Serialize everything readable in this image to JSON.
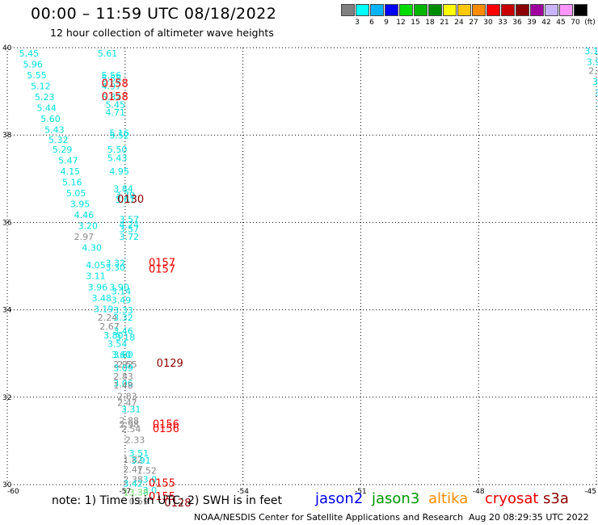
{
  "header": {
    "title": "00:00 – 11:59 UTC 08/18/2022",
    "subtitle": "12 hour collection of altimeter wave heights"
  },
  "colorbar": {
    "colors": [
      "#808080",
      "#00ffff",
      "#00b4ff",
      "#0000ff",
      "#00dc00",
      "#00b400",
      "#008c00",
      "#ffff00",
      "#ffc800",
      "#ff8c00",
      "#ff0000",
      "#c80000",
      "#8c0000",
      "#a000a0",
      "#c8b4ff",
      "#ff96ff",
      "#000000"
    ],
    "labels": [
      "3",
      "6",
      "9",
      "12",
      "15",
      "18",
      "21",
      "24",
      "27",
      "30",
      "33",
      "36",
      "39",
      "42",
      "45",
      "70",
      "(ft)"
    ]
  },
  "chart_data": {
    "type": "scatter",
    "xlim": [
      -60,
      -45
    ],
    "ylim": [
      30,
      40
    ],
    "x_ticks": [
      "-60",
      "-57",
      "-54",
      "-51",
      "-48",
      "-45"
    ],
    "y_ticks": [
      "30",
      "32",
      "34",
      "36",
      "38",
      "40"
    ],
    "grid": true,
    "wave_heights": [
      {
        "x": -59.7,
        "y": 39.8,
        "label": "5.45",
        "color": "#00e0e0"
      },
      {
        "x": -57.7,
        "y": 39.8,
        "label": "5.61",
        "color": "#00e0e0"
      },
      {
        "x": -59.6,
        "y": 39.55,
        "label": "5.96",
        "color": "#00e0e0"
      },
      {
        "x": -59.5,
        "y": 39.3,
        "label": "5.55",
        "color": "#00e0e0"
      },
      {
        "x": -57.6,
        "y": 39.3,
        "label": "5.56",
        "color": "#00e0e0"
      },
      {
        "x": -57.6,
        "y": 39.22,
        "label": "5.58",
        "color": "#00e0e0"
      },
      {
        "x": -59.4,
        "y": 39.05,
        "label": "5.12",
        "color": "#00e0e0"
      },
      {
        "x": -57.6,
        "y": 39.05,
        "label": "4.97",
        "color": "#00e0e0"
      },
      {
        "x": -59.3,
        "y": 38.8,
        "label": "5.23",
        "color": "#00e0e0"
      },
      {
        "x": -57.6,
        "y": 38.8,
        "label": "5.82",
        "color": "#00e0e0"
      },
      {
        "x": -59.25,
        "y": 38.55,
        "label": "5.44",
        "color": "#00e0e0"
      },
      {
        "x": -57.5,
        "y": 38.62,
        "label": "5.45",
        "color": "#00e0e0"
      },
      {
        "x": -57.5,
        "y": 38.45,
        "label": "4.71",
        "color": "#00e0e0"
      },
      {
        "x": -59.15,
        "y": 38.3,
        "label": "5.60",
        "color": "#00e0e0"
      },
      {
        "x": -59.05,
        "y": 38.05,
        "label": "5.43",
        "color": "#00e0e0"
      },
      {
        "x": -57.4,
        "y": 37.98,
        "label": "5.16",
        "color": "#00e0e0"
      },
      {
        "x": -57.4,
        "y": 37.92,
        "label": "5.52",
        "color": "#00e0e0"
      },
      {
        "x": -58.95,
        "y": 37.82,
        "label": "5.32",
        "color": "#00e0e0"
      },
      {
        "x": -58.85,
        "y": 37.6,
        "label": "5.29",
        "color": "#00e0e0"
      },
      {
        "x": -57.45,
        "y": 37.6,
        "label": "5.50",
        "color": "#00e0e0"
      },
      {
        "x": -58.7,
        "y": 37.35,
        "label": "5.47",
        "color": "#00e0e0"
      },
      {
        "x": -57.45,
        "y": 37.4,
        "label": "5.43",
        "color": "#00e0e0"
      },
      {
        "x": -58.65,
        "y": 37.1,
        "label": "4.15",
        "color": "#00e0e0"
      },
      {
        "x": -57.4,
        "y": 37.1,
        "label": "4.95",
        "color": "#00e0e0"
      },
      {
        "x": -58.6,
        "y": 36.85,
        "label": "5.16",
        "color": "#00e0e0"
      },
      {
        "x": -58.5,
        "y": 36.6,
        "label": "5.05",
        "color": "#00e0e0"
      },
      {
        "x": -57.3,
        "y": 36.7,
        "label": "3.84",
        "color": "#00e0e0"
      },
      {
        "x": -57.25,
        "y": 36.55,
        "label": "3.79",
        "color": "#00e0e0"
      },
      {
        "x": -58.4,
        "y": 36.35,
        "label": "3.95",
        "color": "#00e0e0"
      },
      {
        "x": -57.25,
        "y": 36.45,
        "label": "3.61",
        "color": "#00e0e0"
      },
      {
        "x": -58.3,
        "y": 36.1,
        "label": "4.46",
        "color": "#00e0e0"
      },
      {
        "x": -57.15,
        "y": 36.0,
        "label": "3.57",
        "color": "#00e0e0"
      },
      {
        "x": -58.2,
        "y": 35.85,
        "label": "3.20",
        "color": "#00e0e0"
      },
      {
        "x": -57.15,
        "y": 35.88,
        "label": "4.24",
        "color": "#00e0e0"
      },
      {
        "x": -57.15,
        "y": 35.78,
        "label": "3.57",
        "color": "#00e0e0"
      },
      {
        "x": -58.3,
        "y": 35.6,
        "label": "2.97",
        "color": "#888888"
      },
      {
        "x": -57.15,
        "y": 35.6,
        "label": "3.72",
        "color": "#00e0e0"
      },
      {
        "x": -58.1,
        "y": 35.35,
        "label": "4.30",
        "color": "#00e0e0"
      },
      {
        "x": -57.5,
        "y": 35.0,
        "label": "3.32",
        "color": "#00e0e0"
      },
      {
        "x": -58.0,
        "y": 34.95,
        "label": "4.05",
        "color": "#00e0e0"
      },
      {
        "x": -57.5,
        "y": 34.9,
        "label": "3.30",
        "color": "#00e0e0"
      },
      {
        "x": -58.0,
        "y": 34.7,
        "label": "3.11",
        "color": "#00e0e0"
      },
      {
        "x": -57.4,
        "y": 34.45,
        "label": "3.90",
        "color": "#00e0e0"
      },
      {
        "x": -57.95,
        "y": 34.45,
        "label": "3.96",
        "color": "#00e0e0"
      },
      {
        "x": -57.35,
        "y": 34.35,
        "label": "3.14",
        "color": "#00e0e0"
      },
      {
        "x": -57.85,
        "y": 34.2,
        "label": "3.48",
        "color": "#00e0e0"
      },
      {
        "x": -57.35,
        "y": 34.15,
        "label": "3.49",
        "color": "#00e0e0"
      },
      {
        "x": -57.8,
        "y": 33.95,
        "label": "3.19",
        "color": "#00e0e0"
      },
      {
        "x": -57.3,
        "y": 33.92,
        "label": "3.33",
        "color": "#00e0e0"
      },
      {
        "x": -57.7,
        "y": 33.75,
        "label": "2.24",
        "color": "#888888"
      },
      {
        "x": -57.3,
        "y": 33.75,
        "label": "3.32",
        "color": "#00e0e0"
      },
      {
        "x": -57.65,
        "y": 33.55,
        "label": "2.67",
        "color": "#888888"
      },
      {
        "x": -57.3,
        "y": 33.45,
        "label": "3.46",
        "color": "#00e0e0"
      },
      {
        "x": -57.55,
        "y": 33.35,
        "label": "3.80",
        "color": "#00e0e0"
      },
      {
        "x": -57.25,
        "y": 33.3,
        "label": "3.18",
        "color": "#00e0e0"
      },
      {
        "x": -57.45,
        "y": 33.15,
        "label": "3.54",
        "color": "#00e0e0"
      },
      {
        "x": -57.35,
        "y": 32.9,
        "label": "3.60",
        "color": "#00e0e0"
      },
      {
        "x": -57.3,
        "y": 32.9,
        "label": "3.60",
        "color": "#00e0e0"
      },
      {
        "x": -57.3,
        "y": 32.68,
        "label": "2.92",
        "color": "#888888"
      },
      {
        "x": -57.2,
        "y": 32.68,
        "label": "2.55",
        "color": "#888888"
      },
      {
        "x": -57.3,
        "y": 32.6,
        "label": "3.09",
        "color": "#00e0e0"
      },
      {
        "x": -57.3,
        "y": 32.4,
        "label": "2.83",
        "color": "#888888"
      },
      {
        "x": -57.3,
        "y": 32.25,
        "label": "3.06",
        "color": "#00e0e0"
      },
      {
        "x": -57.3,
        "y": 32.2,
        "label": "1.48",
        "color": "#888888"
      },
      {
        "x": -57.2,
        "y": 31.95,
        "label": "2.83",
        "color": "#888888"
      },
      {
        "x": -57.2,
        "y": 31.8,
        "label": "2.47",
        "color": "#888888"
      },
      {
        "x": -57.1,
        "y": 31.65,
        "label": "3.31",
        "color": "#00e0e0"
      },
      {
        "x": -57.15,
        "y": 31.4,
        "label": "2.88",
        "color": "#888888"
      },
      {
        "x": -57.15,
        "y": 31.3,
        "label": "2.98",
        "color": "#888888"
      },
      {
        "x": -57.1,
        "y": 31.2,
        "label": "2.54",
        "color": "#888888"
      },
      {
        "x": -57.0,
        "y": 30.95,
        "label": "2.33",
        "color": "#888888"
      },
      {
        "x": -56.9,
        "y": 30.65,
        "label": "3.51",
        "color": "#00e0e0"
      },
      {
        "x": -57.05,
        "y": 30.5,
        "label": "1.82",
        "color": "#888888"
      },
      {
        "x": -56.85,
        "y": 30.48,
        "label": "3.91",
        "color": "#00e0e0"
      },
      {
        "x": -57.05,
        "y": 30.28,
        "label": "2.47",
        "color": "#888888"
      },
      {
        "x": -56.7,
        "y": 30.25,
        "label": "1.52",
        "color": "#888888"
      },
      {
        "x": -57.05,
        "y": 30.05,
        "label": "2.38",
        "color": "#888888"
      },
      {
        "x": -56.55,
        "y": 30.05,
        "label": "3.0",
        "color": "#00e0e0"
      },
      {
        "x": -57.05,
        "y": 29.95,
        "label": "3.42",
        "color": "#00e0e0"
      },
      {
        "x": -56.55,
        "y": 29.8,
        "label": "3.0",
        "color": "#00e0e0"
      },
      {
        "x": -57.05,
        "y": 29.75,
        "label": "13.38",
        "color": "#66dd66"
      },
      {
        "x": -56.9,
        "y": 29.55,
        "label": "0.59",
        "color": "#888888"
      },
      {
        "x": -45.3,
        "y": 39.85,
        "label": "3.19",
        "color": "#00e0e0"
      },
      {
        "x": -45.25,
        "y": 39.6,
        "label": "3.91",
        "color": "#00e0e0"
      },
      {
        "x": -45.2,
        "y": 39.4,
        "label": "2.67",
        "color": "#888888"
      },
      {
        "x": -45.1,
        "y": 39.15,
        "label": "3.21",
        "color": "#00e0e0"
      },
      {
        "x": -45.05,
        "y": 38.9,
        "label": "3.17",
        "color": "#00e0e0"
      },
      {
        "x": -45.0,
        "y": 38.65,
        "label": "3.0",
        "color": "#00e0e0"
      },
      {
        "x": -44.95,
        "y": 38.4,
        "label": "2",
        "color": "#888888"
      }
    ],
    "time_labels": [
      {
        "x": -57.6,
        "y": 39.1,
        "label": "0158",
        "color": "#ee0000"
      },
      {
        "x": -57.6,
        "y": 38.8,
        "label": "0158",
        "color": "#ee0000"
      },
      {
        "x": -57.2,
        "y": 36.45,
        "label": "0130",
        "color": "#8b0000"
      },
      {
        "x": -56.4,
        "y": 35.0,
        "label": "0157",
        "color": "#ee0000"
      },
      {
        "x": -56.4,
        "y": 34.85,
        "label": "0157",
        "color": "#ee0000"
      },
      {
        "x": -56.2,
        "y": 32.7,
        "label": "0129",
        "color": "#8b0000"
      },
      {
        "x": -56.3,
        "y": 31.3,
        "label": "0156",
        "color": "#ee0000"
      },
      {
        "x": -56.3,
        "y": 31.2,
        "label": "0156",
        "color": "#ee0000"
      },
      {
        "x": -56.4,
        "y": 29.95,
        "label": "0155",
        "color": "#ee0000"
      },
      {
        "x": -56.4,
        "y": 29.65,
        "label": "0155",
        "color": "#ee0000"
      },
      {
        "x": -56.0,
        "y": 29.5,
        "label": "0128",
        "color": "#8b0000"
      },
      {
        "x": -44.9,
        "y": 39.85,
        "label": "0",
        "color": "#009900"
      }
    ]
  },
  "legend": {
    "note": "note:  1) Time is in UTC;  2) SWH is in feet",
    "satellites": [
      {
        "name": "jason2",
        "color": "#0000ee"
      },
      {
        "name": "jason3",
        "color": "#009900"
      },
      {
        "name": "altika",
        "color": "#ff8c00"
      },
      {
        "name": "cryosat",
        "color": "#ee0000"
      },
      {
        "name": "s3a",
        "color": "#8b0000"
      }
    ]
  },
  "footer": {
    "center": "NOAA/NESDIS Center for Satellite Applications and Research",
    "time": "Aug 20 08:29:35 UTC 2022"
  }
}
